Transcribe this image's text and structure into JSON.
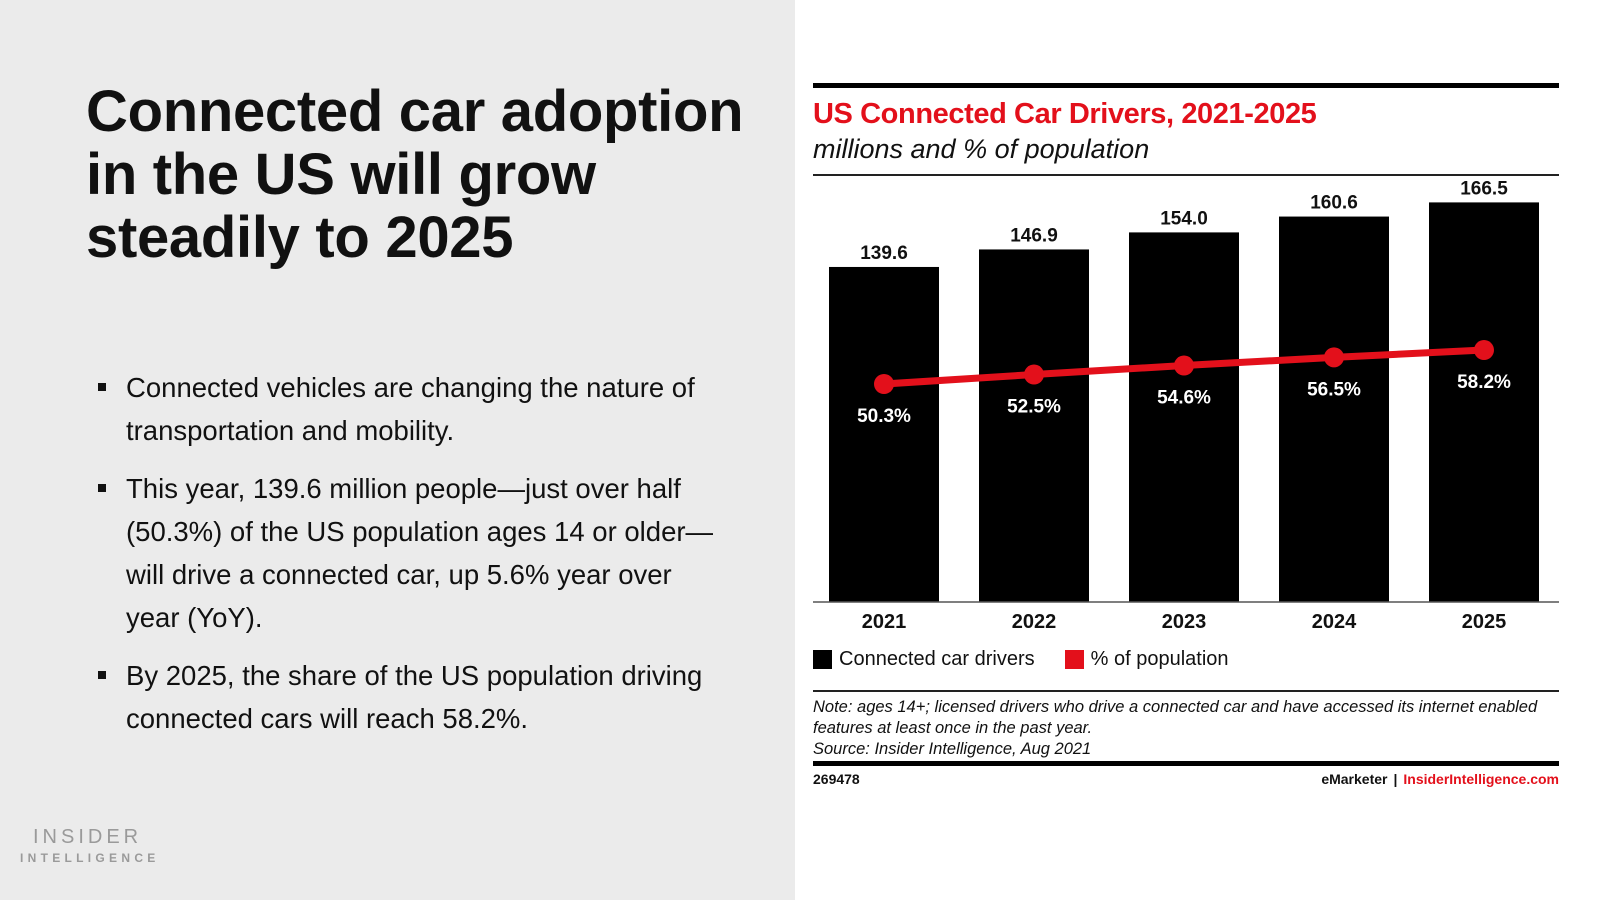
{
  "slide": {
    "headline": "Connected car adoption in the US will grow steadily to 2025",
    "bullets": [
      "Connected vehicles are changing the nature of transportation and mobility.",
      "This year, 139.6 million people—just over half (50.3%) of the US population ages 14 or older—will drive a connected car, up 5.6% year over year (YoY).",
      "By 2025, the share of the US population driving connected cars will reach 58.2%."
    ],
    "logo": {
      "line1": "INSIDER",
      "line2": "INTELLIGENCE"
    }
  },
  "colors": {
    "bar": "#000000",
    "line": "#e3101b",
    "title": "#e3101b",
    "left_bg": "#ebebeb"
  },
  "chart_data": {
    "type": "bar",
    "title": "US Connected Car Drivers, 2021-2025",
    "subtitle": "millions and % of population",
    "categories": [
      "2021",
      "2022",
      "2023",
      "2024",
      "2025"
    ],
    "series": [
      {
        "name": "Connected car drivers",
        "type": "bar",
        "unit": "millions",
        "values": [
          139.6,
          146.9,
          154.0,
          160.6,
          166.5
        ],
        "labels": [
          "139.6",
          "146.9",
          "154.0",
          "160.6",
          "166.5"
        ]
      },
      {
        "name": "% of population",
        "type": "line",
        "unit": "percent",
        "values": [
          50.3,
          52.5,
          54.6,
          56.5,
          58.2
        ],
        "labels": [
          "50.3%",
          "52.5%",
          "54.6%",
          "56.5%",
          "58.2%"
        ]
      }
    ],
    "xlabel": "",
    "ylabel": "",
    "ylim_bars": [
      0,
      170
    ],
    "ylim_line": [
      0,
      100
    ],
    "grid": false,
    "legend_position": "bottom-left",
    "legend": [
      "Connected car drivers",
      "% of population"
    ],
    "note": "Note: ages 14+; licensed drivers who drive a connected car and have accessed its internet enabled features at least once in the past year.",
    "source": "Source: Insider Intelligence, Aug 2021",
    "chart_id": "269478",
    "footer_brand": "eMarketer",
    "footer_separator": "|",
    "footer_site": "InsiderIntelligence.com"
  }
}
